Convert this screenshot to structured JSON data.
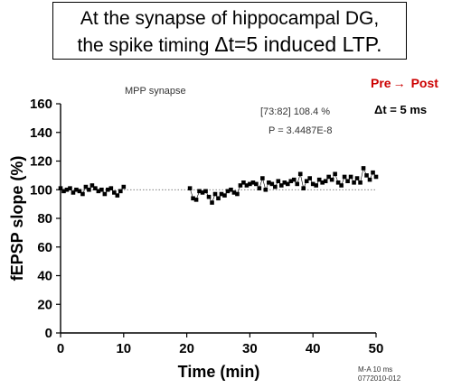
{
  "title": {
    "line1": "At the synapse of hippocampal DG,",
    "line2_prefix": "the spike timing ",
    "line2_emph": "Δt=5 induced LTP."
  },
  "legend": {
    "pre": "Pre",
    "arrow": "→",
    "post": "Post",
    "dt": "Δt = 5 ms",
    "pre_color": "#cc0000"
  },
  "chart_data": {
    "type": "scatter",
    "subtitle": "MPP synapse",
    "annotation_range": "[73:82] 108.4 %",
    "annotation_p": "P = 3.4487E-8",
    "xlabel": "Time (min)",
    "ylabel": "fEPSP slope (%)",
    "xlim": [
      0,
      50
    ],
    "ylim": [
      0,
      160
    ],
    "xticks": [
      0,
      10,
      20,
      30,
      40,
      50
    ],
    "yticks": [
      0,
      20,
      40,
      60,
      80,
      100,
      120,
      140,
      160
    ],
    "baseline": 100,
    "footnote1": "M-A 10 ms",
    "footnote2": "0772010-012",
    "marker": "square",
    "color": "#000000",
    "series": [
      {
        "values": [
          [
            0.0,
            101
          ],
          [
            0.5,
            99
          ],
          [
            1.0,
            100
          ],
          [
            1.5,
            101
          ],
          [
            2.0,
            98
          ],
          [
            2.5,
            100
          ],
          [
            3.0,
            99
          ],
          [
            3.5,
            97
          ],
          [
            4.0,
            102
          ],
          [
            4.5,
            100
          ],
          [
            5.0,
            103
          ],
          [
            5.5,
            101
          ],
          [
            6.0,
            99
          ],
          [
            6.5,
            100
          ],
          [
            7.0,
            97
          ],
          [
            7.5,
            100
          ],
          [
            8.0,
            101
          ],
          [
            8.5,
            98
          ],
          [
            9.0,
            96
          ],
          [
            9.5,
            99
          ],
          [
            10.0,
            102
          ],
          [
            20.5,
            101
          ],
          [
            21.0,
            94
          ],
          [
            21.5,
            93
          ],
          [
            22.0,
            99
          ],
          [
            22.5,
            98
          ],
          [
            23.0,
            99
          ],
          [
            23.5,
            95
          ],
          [
            24.0,
            91
          ],
          [
            24.5,
            97
          ],
          [
            25.0,
            94
          ],
          [
            25.5,
            97
          ],
          [
            26.0,
            96
          ],
          [
            26.5,
            99
          ],
          [
            27.0,
            100
          ],
          [
            27.5,
            98
          ],
          [
            28.0,
            97
          ],
          [
            28.5,
            103
          ],
          [
            29.0,
            105
          ],
          [
            29.5,
            103
          ],
          [
            30.0,
            104
          ],
          [
            30.5,
            105
          ],
          [
            31.0,
            104
          ],
          [
            31.5,
            101
          ],
          [
            32.0,
            108
          ],
          [
            32.5,
            100
          ],
          [
            33.0,
            105
          ],
          [
            33.5,
            104
          ],
          [
            34.0,
            102
          ],
          [
            34.5,
            106
          ],
          [
            35.0,
            103
          ],
          [
            35.5,
            105
          ],
          [
            36.0,
            104
          ],
          [
            36.5,
            106
          ],
          [
            37.0,
            107
          ],
          [
            37.5,
            104
          ],
          [
            38.0,
            111
          ],
          [
            38.5,
            101
          ],
          [
            39.0,
            106
          ],
          [
            39.5,
            108
          ],
          [
            40.0,
            104
          ],
          [
            40.5,
            103
          ],
          [
            41.0,
            107
          ],
          [
            41.5,
            105
          ],
          [
            42.0,
            106
          ],
          [
            42.5,
            109
          ],
          [
            43.0,
            107
          ],
          [
            43.5,
            111
          ],
          [
            44.0,
            105
          ],
          [
            44.5,
            103
          ],
          [
            45.0,
            109
          ],
          [
            45.5,
            106
          ],
          [
            46.0,
            109
          ],
          [
            46.5,
            105
          ],
          [
            47.0,
            108
          ],
          [
            47.5,
            105
          ],
          [
            48.0,
            115
          ],
          [
            48.5,
            110
          ],
          [
            49.0,
            107
          ],
          [
            49.5,
            112
          ],
          [
            50.0,
            109
          ]
        ]
      }
    ]
  }
}
